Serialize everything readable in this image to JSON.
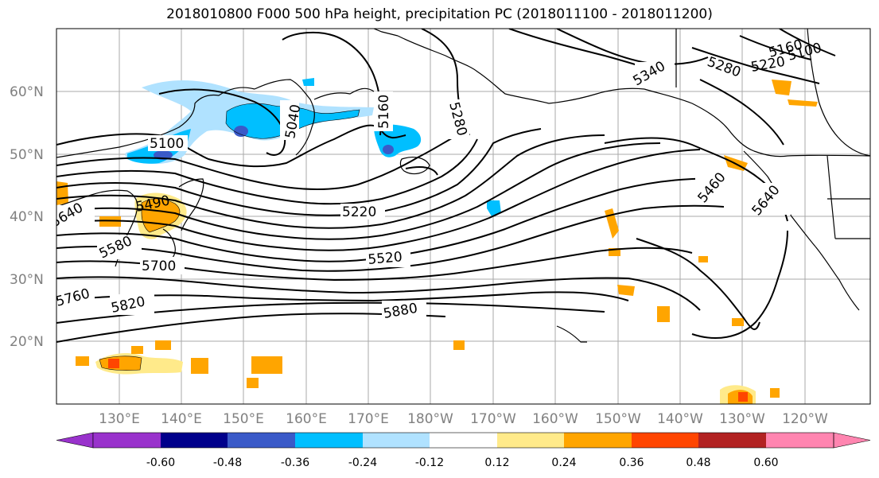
{
  "title": "2018010800 F000 500 hPa height, precipitation PC (2018011100 - 2018011200)",
  "map": {
    "lat_labels": [
      "60°N",
      "50°N",
      "40°N",
      "30°N",
      "20°N"
    ],
    "lon_labels": [
      "130°E",
      "140°E",
      "150°E",
      "160°E",
      "170°E",
      "180°W",
      "170°W",
      "160°W",
      "150°W",
      "140°W",
      "130°W",
      "120°W"
    ],
    "contour_labels": [
      "5100",
      "5040",
      "5160",
      "5280",
      "5340",
      "5280",
      "5220",
      "5160",
      "5100",
      "5460",
      "5640",
      "5220",
      "5520",
      "5880",
      "5820",
      "5760",
      "5700",
      "5580",
      "5490",
      "5640"
    ]
  },
  "colorbar": {
    "colors": [
      "#9932cc",
      "#00008b",
      "#3a5ac8",
      "#00bfff",
      "#b0e2ff",
      "#ffffff",
      "#ffea8a",
      "#ffa500",
      "#ff4500",
      "#b22222",
      "#ff85b0"
    ],
    "tick_labels": [
      "-0.60",
      "-0.48",
      "-0.36",
      "-0.24",
      "-0.12",
      "0.12",
      "0.24",
      "0.36",
      "0.48",
      "0.60"
    ]
  }
}
